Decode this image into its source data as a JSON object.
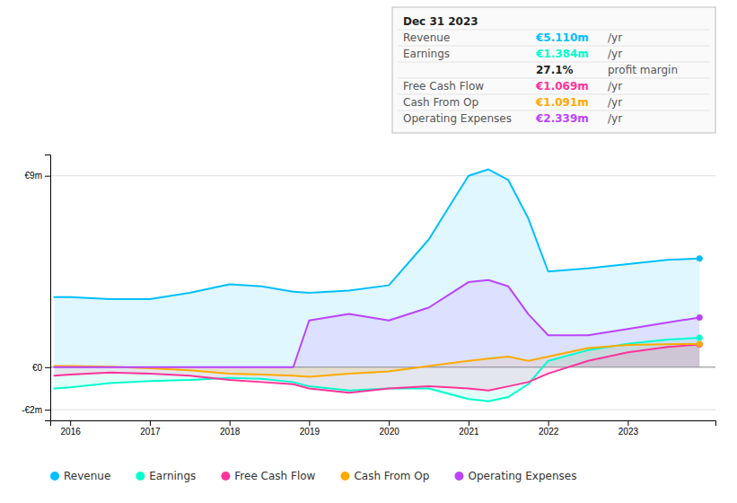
{
  "chart_data": {
    "type": "line",
    "x": [
      2015.8,
      2016.0,
      2016.5,
      2017.0,
      2017.5,
      2018.0,
      2018.4,
      2018.8,
      2019.0,
      2019.5,
      2020.0,
      2020.5,
      2021.0,
      2021.25,
      2021.5,
      2021.75,
      2022.0,
      2022.5,
      2023.0,
      2023.5,
      2023.9
    ],
    "series": [
      {
        "name": "Revenue",
        "color": "#00bfff",
        "values": [
          3.3,
          3.3,
          3.2,
          3.2,
          3.5,
          3.9,
          3.8,
          3.55,
          3.5,
          3.6,
          3.85,
          6.0,
          9.0,
          9.3,
          8.8,
          7.0,
          4.5,
          4.65,
          4.85,
          5.05,
          5.11
        ]
      },
      {
        "name": "Earnings",
        "color": "#00ffcc",
        "values": [
          -1.0,
          -0.95,
          -0.75,
          -0.65,
          -0.6,
          -0.5,
          -0.55,
          -0.7,
          -0.9,
          -1.1,
          -1.0,
          -1.0,
          -1.5,
          -1.6,
          -1.4,
          -0.8,
          0.3,
          0.8,
          1.1,
          1.3,
          1.38
        ]
      },
      {
        "name": "Free Cash Flow",
        "color": "#ff3399",
        "values": [
          -0.4,
          -0.35,
          -0.25,
          -0.3,
          -0.4,
          -0.6,
          -0.7,
          -0.8,
          -1.0,
          -1.2,
          -1.0,
          -0.9,
          -1.0,
          -1.1,
          -0.9,
          -0.7,
          -0.3,
          0.3,
          0.7,
          0.95,
          1.069
        ]
      },
      {
        "name": "Cash From Op",
        "color": "#ffaa00",
        "values": [
          0.05,
          0.05,
          0.02,
          -0.05,
          -0.15,
          -0.3,
          -0.35,
          -0.4,
          -0.45,
          -0.3,
          -0.2,
          0.05,
          0.3,
          0.4,
          0.5,
          0.3,
          0.5,
          0.9,
          1.05,
          1.08,
          1.091
        ]
      },
      {
        "name": "Operating Expenses",
        "color": "#bb44ff",
        "values": [
          0.0,
          0.0,
          0.0,
          0.0,
          0.0,
          0.0,
          0.0,
          0.0,
          2.2,
          2.5,
          2.2,
          2.8,
          4.0,
          4.1,
          3.8,
          2.5,
          1.5,
          1.5,
          1.8,
          2.1,
          2.339
        ]
      }
    ],
    "xlim": [
      2015.75,
      2024.1
    ],
    "ylim": [
      -2.5,
      10.0
    ],
    "xticks": [
      2016,
      2017,
      2018,
      2019,
      2020,
      2021,
      2022,
      2023
    ],
    "yticks": [
      {
        "value": -2,
        "label": "-€2m"
      },
      {
        "value": 0,
        "label": "€0"
      },
      {
        "value": 9,
        "label": "€9m"
      }
    ],
    "grid": true,
    "legend": "bottom",
    "annotations": [
      [
        {
          "text": "Dec 31 2023"
        }
      ],
      [
        {
          "text": "Revenue"
        },
        {
          "text": "€5.110m",
          "color": "#00bfff"
        },
        {
          "text": "/yr"
        }
      ],
      [
        {
          "text": "Earnings"
        },
        {
          "text": "€1.384m",
          "color": "#00ffcc"
        },
        {
          "text": "/yr"
        }
      ],
      [
        {
          "text": "27.1%"
        },
        {
          "text": "profit margin"
        }
      ],
      [
        {
          "text": "Free Cash Flow"
        },
        {
          "text": "€1.069m",
          "color": "#ff3399"
        },
        {
          "text": "/yr"
        }
      ],
      [
        {
          "text": "Cash From Op"
        },
        {
          "text": "€1.091m",
          "color": "#ffaa00"
        },
        {
          "text": "/yr"
        }
      ],
      [
        {
          "text": "Operating Expenses"
        },
        {
          "text": "€2.339m",
          "color": "#bb44ff"
        },
        {
          "text": "/yr"
        }
      ]
    ]
  }
}
